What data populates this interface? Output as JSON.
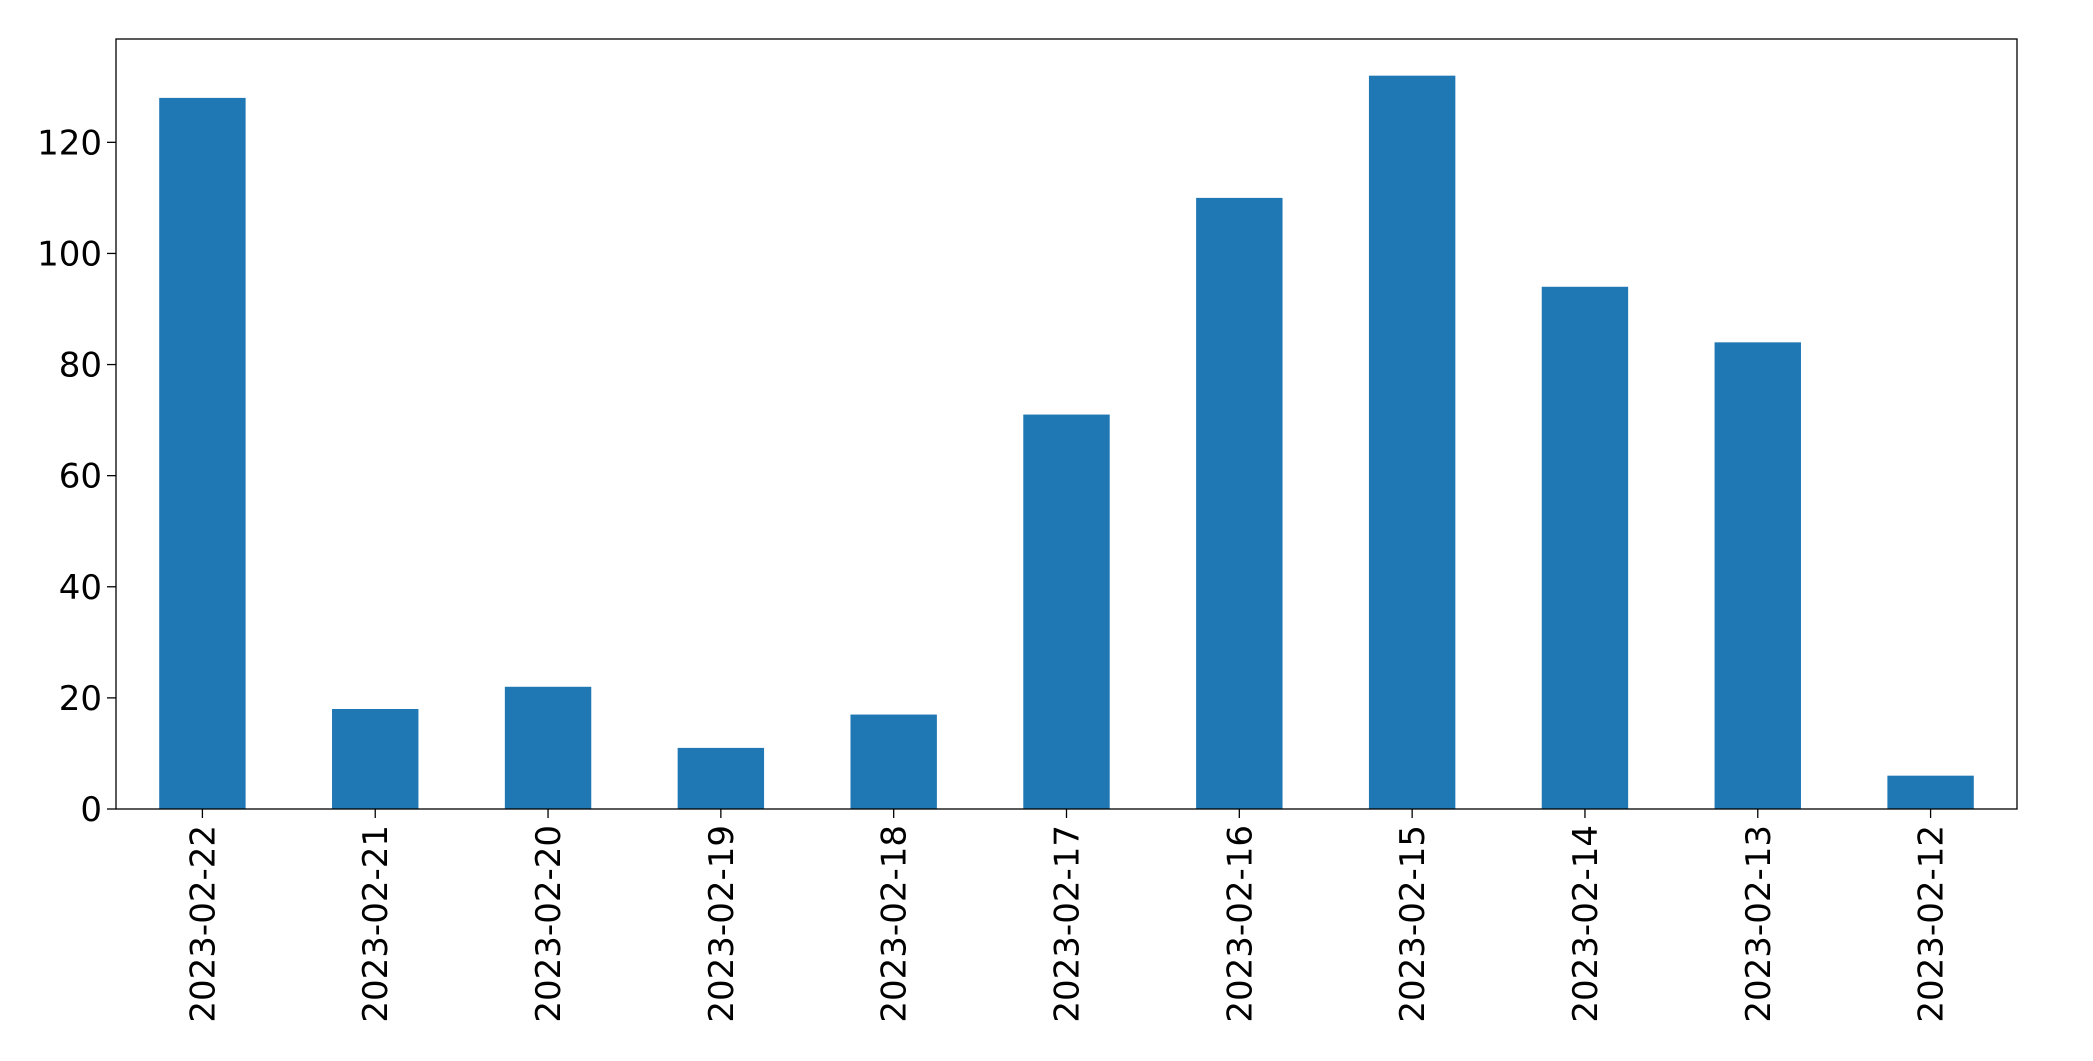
{
  "chart_data": {
    "type": "bar",
    "categories": [
      "2023-02-22",
      "2023-02-21",
      "2023-02-20",
      "2023-02-19",
      "2023-02-18",
      "2023-02-17",
      "2023-02-16",
      "2023-02-15",
      "2023-02-14",
      "2023-02-13",
      "2023-02-12"
    ],
    "values": [
      128,
      18,
      22,
      11,
      17,
      71,
      110,
      132,
      94,
      84,
      6
    ],
    "color": "#1f77b4",
    "ylim": [
      0,
      138.6
    ],
    "yticks": [
      0,
      20,
      40,
      60,
      80,
      100,
      120
    ],
    "grid": false
  }
}
